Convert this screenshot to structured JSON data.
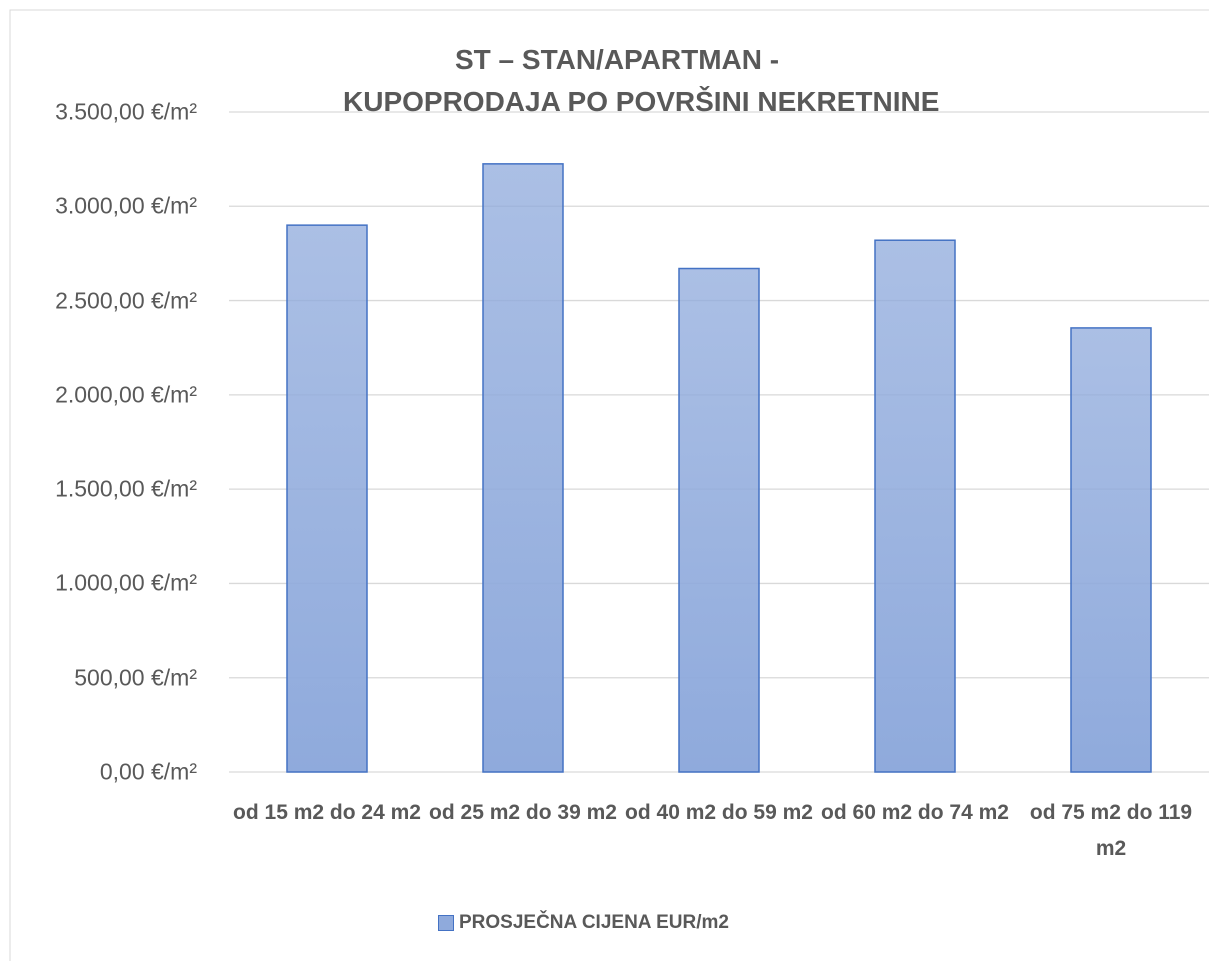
{
  "chart_data": {
    "type": "bar",
    "title": [
      "ST – STAN/APARTMAN -",
      "KUPOPRODAJA PO POVRŠINI NEKRETNINE"
    ],
    "categories": [
      "od 15 m2 do 24 m2",
      "od 25 m2 do 39 m2",
      "od 40 m2 do 59 m2",
      "od 60 m2 do 74 m2",
      "od 75 m2 do 119 m2"
    ],
    "series": [
      {
        "name": "PROSJEČNA CIJENA EUR/m2",
        "color": "#8faadc",
        "values": [
          2900,
          3225,
          2670,
          2820,
          2355
        ]
      }
    ],
    "ylim": [
      0,
      3500
    ],
    "yticks": [
      {
        "value": 0,
        "label": "0,00 €/m²"
      },
      {
        "value": 500,
        "label": "500,00 €/m²"
      },
      {
        "value": 1000,
        "label": "1.000,00 €/m²"
      },
      {
        "value": 1500,
        "label": "1.500,00 €/m²"
      },
      {
        "value": 2000,
        "label": "2.000,00 €/m²"
      },
      {
        "value": 2500,
        "label": "2.500,00 €/m²"
      },
      {
        "value": 3000,
        "label": "3.000,00 €/m²"
      },
      {
        "value": 3500,
        "label": "3.500,00 €/m²"
      }
    ],
    "grid": true,
    "legend": "bottom"
  }
}
